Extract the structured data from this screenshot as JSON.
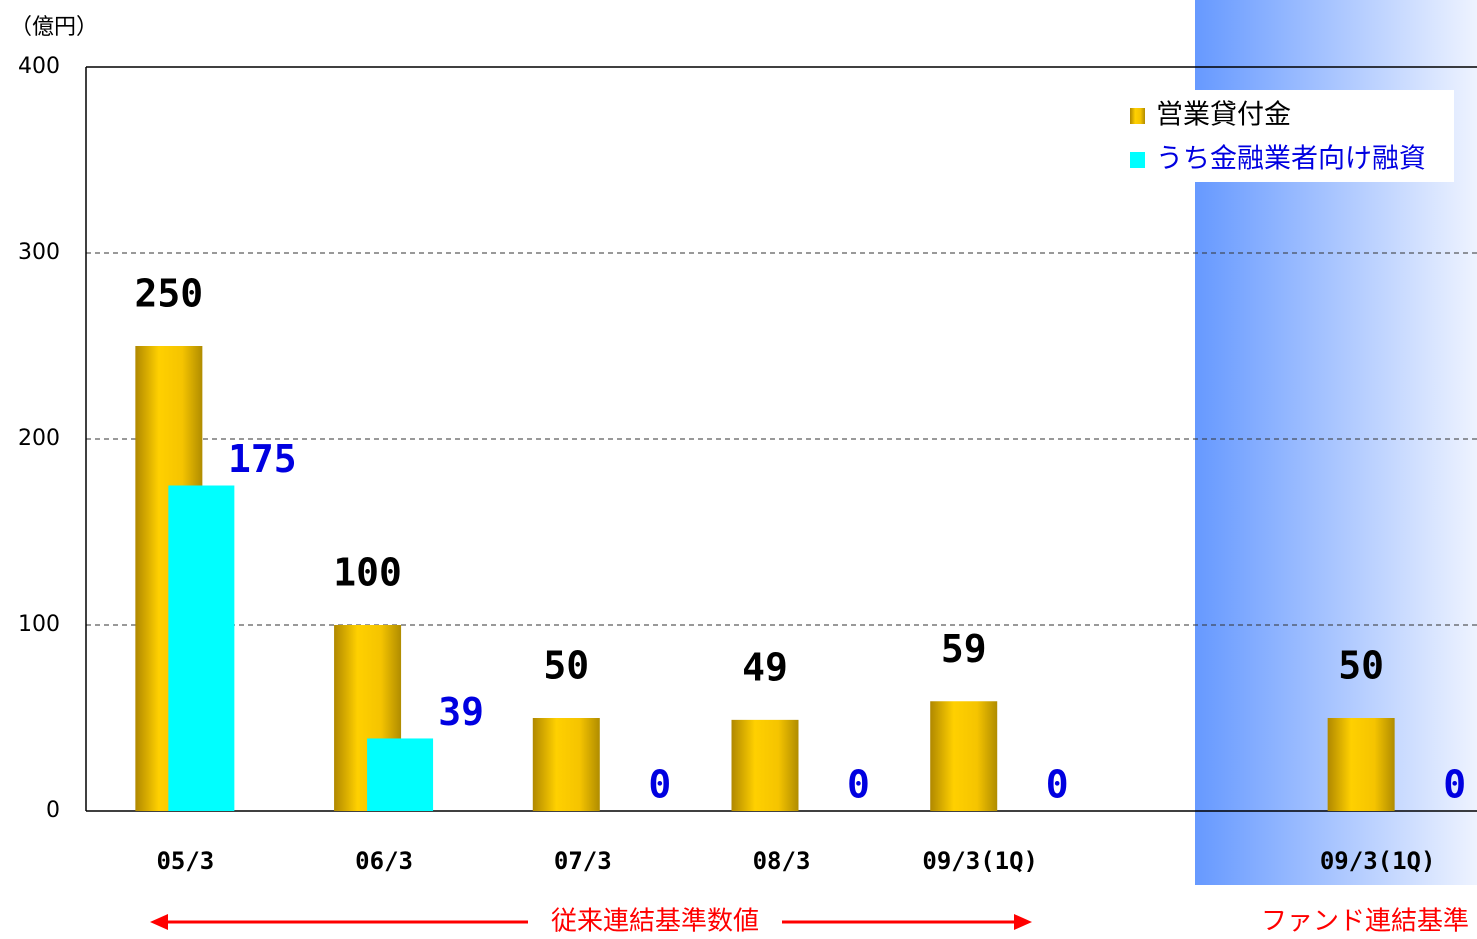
{
  "chart_data": {
    "type": "bar",
    "unit_label": "（億円）",
    "categories": [
      "05/3",
      "06/3",
      "07/3",
      "08/3",
      "09/3(1Q)",
      null,
      "09/3(1Q)"
    ],
    "series": [
      {
        "name": "営業貸付金",
        "color": "#f2c200",
        "values": [
          250,
          100,
          50,
          49,
          59,
          null,
          50
        ]
      },
      {
        "name": "うち金融業者向け融資",
        "color": "#00ffff",
        "values": [
          175,
          39,
          0,
          0,
          0,
          null,
          0
        ]
      }
    ],
    "ylim": [
      0,
      400
    ],
    "yticks": [
      0,
      100,
      200,
      300,
      400
    ],
    "grid": true,
    "annotations": [
      "従来連結基準数値",
      "ファンド連結基準"
    ]
  }
}
